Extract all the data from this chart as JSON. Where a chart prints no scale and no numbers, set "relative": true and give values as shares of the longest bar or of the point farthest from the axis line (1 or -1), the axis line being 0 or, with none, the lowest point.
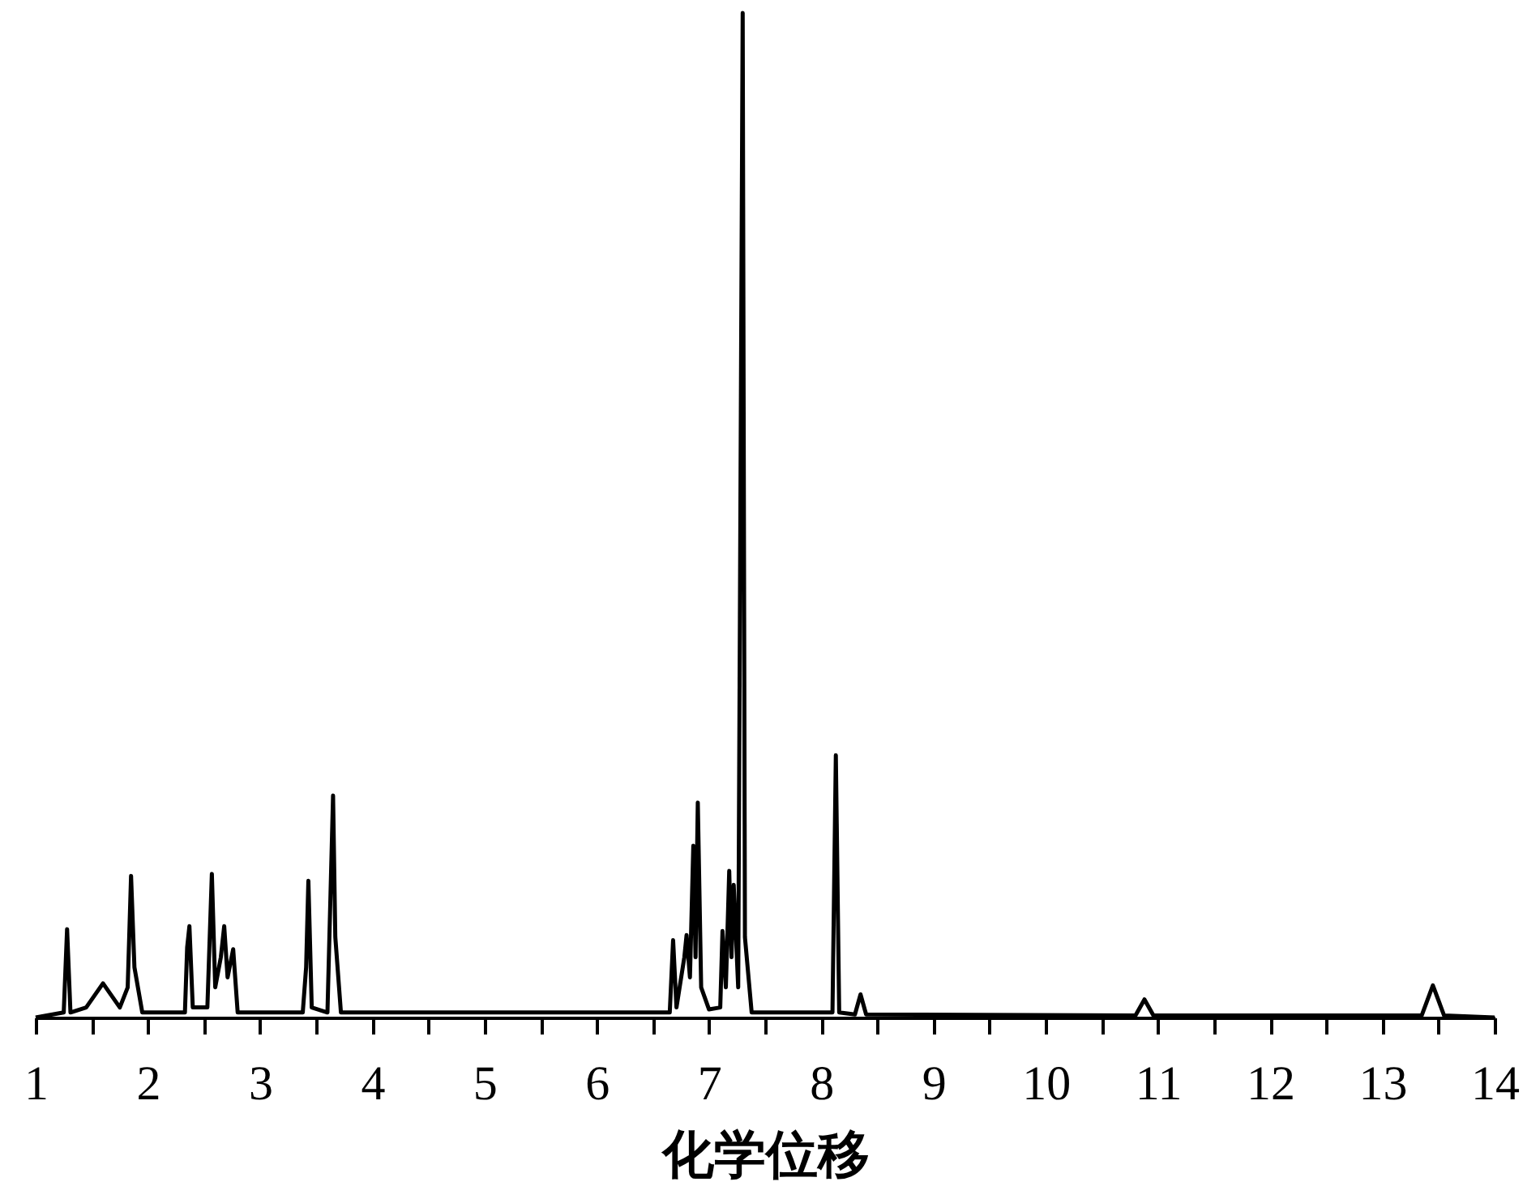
{
  "chart_data": {
    "type": "line",
    "xlabel": "化学位移",
    "relative": true,
    "xlim": [
      1,
      14
    ],
    "xticks": [
      1,
      {
        "value": 1.5,
        "label": null
      },
      2,
      {
        "value": 2.5,
        "label": null
      },
      3,
      {
        "value": 3.5,
        "label": null
      },
      4,
      {
        "value": 4.5,
        "label": null
      },
      5,
      {
        "value": 5.5,
        "label": null
      },
      6,
      {
        "value": 6.5,
        "label": null
      },
      7,
      {
        "value": 7.5,
        "label": null
      },
      8,
      {
        "value": 8.5,
        "label": null
      },
      9,
      {
        "value": 9.5,
        "label": null
      },
      10,
      {
        "value": 10.5,
        "label": null
      },
      11,
      {
        "value": 11.5,
        "label": null
      },
      12,
      {
        "value": 12.5,
        "label": null
      },
      13,
      {
        "value": 13.5,
        "label": null
      },
      14
    ],
    "x": [
      1.0,
      1.25,
      1.28,
      1.31,
      1.45,
      1.6,
      1.75,
      1.82,
      1.85,
      1.88,
      1.95,
      2.33,
      2.35,
      2.37,
      2.4,
      2.53,
      2.57,
      2.6,
      2.65,
      2.68,
      2.71,
      2.76,
      2.8,
      3.38,
      3.41,
      3.43,
      3.46,
      3.6,
      3.65,
      3.67,
      3.72,
      6.65,
      6.68,
      6.71,
      6.78,
      6.8,
      6.83,
      6.86,
      6.88,
      6.9,
      6.93,
      7.0,
      7.1,
      7.12,
      7.15,
      7.18,
      7.2,
      7.22,
      7.26,
      7.3,
      7.32,
      7.38,
      8.1,
      8.13,
      8.16,
      8.3,
      8.35,
      8.4,
      10.8,
      10.88,
      10.96,
      13.35,
      13.45,
      13.55,
      14.0
    ],
    "series": [
      {
        "color": "#000000",
        "values": [
          0,
          0.005,
          0.088,
          0.005,
          0.01,
          0.034,
          0.01,
          0.03,
          0.141,
          0.05,
          0.005,
          0.005,
          0.07,
          0.091,
          0.01,
          0.01,
          0.143,
          0.03,
          0.06,
          0.091,
          0.04,
          0.068,
          0.005,
          0.005,
          0.05,
          0.136,
          0.01,
          0.005,
          0.221,
          0.08,
          0.005,
          0.005,
          0.077,
          0.01,
          0.06,
          0.082,
          0.04,
          0.171,
          0.06,
          0.214,
          0.03,
          0.008,
          0.01,
          0.086,
          0.03,
          0.146,
          0.06,
          0.132,
          0.03,
          1,
          0.08,
          0.005,
          0.005,
          0.261,
          0.005,
          0.003,
          0.023,
          0.003,
          0.002,
          0.018,
          0.002,
          0.002,
          0.032,
          0.002,
          0
        ]
      }
    ],
    "grid": false,
    "marker": "none",
    "line_style": "solid"
  }
}
